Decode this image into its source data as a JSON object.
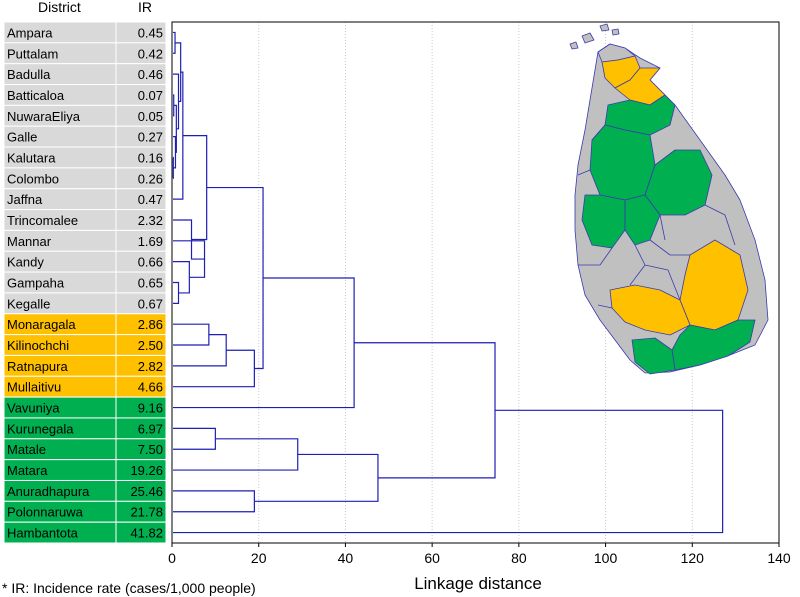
{
  "chart_data": {
    "type": "dendrogram",
    "table_headers": {
      "district": "District",
      "ir": "IR"
    },
    "rows": [
      {
        "district": "Ampara",
        "ir": "0.45",
        "cluster": "low"
      },
      {
        "district": "Puttalam",
        "ir": "0.42",
        "cluster": "low"
      },
      {
        "district": "Badulla",
        "ir": "0.46",
        "cluster": "low"
      },
      {
        "district": "Batticaloa",
        "ir": "0.07",
        "cluster": "low"
      },
      {
        "district": "NuwaraEliya",
        "ir": "0.05",
        "cluster": "low"
      },
      {
        "district": "Galle",
        "ir": "0.27",
        "cluster": "low"
      },
      {
        "district": "Kalutara",
        "ir": "0.16",
        "cluster": "low"
      },
      {
        "district": "Colombo",
        "ir": "0.26",
        "cluster": "low"
      },
      {
        "district": "Jaffna",
        "ir": "0.47",
        "cluster": "low"
      },
      {
        "district": "Trincomalee",
        "ir": "2.32",
        "cluster": "low"
      },
      {
        "district": "Mannar",
        "ir": "1.69",
        "cluster": "low"
      },
      {
        "district": "Kandy",
        "ir": "0.66",
        "cluster": "low"
      },
      {
        "district": "Gampaha",
        "ir": "0.65",
        "cluster": "low"
      },
      {
        "district": "Kegalle",
        "ir": "0.67",
        "cluster": "low"
      },
      {
        "district": "Monaragala",
        "ir": "2.86",
        "cluster": "medium"
      },
      {
        "district": "Kilinochchi",
        "ir": "2.50",
        "cluster": "medium"
      },
      {
        "district": "Ratnapura",
        "ir": "2.82",
        "cluster": "medium"
      },
      {
        "district": "Mullaitivu",
        "ir": "4.66",
        "cluster": "medium"
      },
      {
        "district": "Vavuniya",
        "ir": "9.16",
        "cluster": "high"
      },
      {
        "district": "Kurunegala",
        "ir": "6.97",
        "cluster": "high"
      },
      {
        "district": "Matale",
        "ir": "7.50",
        "cluster": "high"
      },
      {
        "district": "Matara",
        "ir": "19.26",
        "cluster": "high"
      },
      {
        "district": "Anuradhapura",
        "ir": "25.46",
        "cluster": "high"
      },
      {
        "district": "Polonnaruwa",
        "ir": "21.78",
        "cluster": "high"
      },
      {
        "district": "Hambantota",
        "ir": "41.82",
        "cluster": "high"
      }
    ],
    "cluster_colors": {
      "low": "#d9d9d9",
      "medium": "#ffc000",
      "high": "#00b050"
    },
    "links": [
      {
        "id": "n1",
        "children": [
          "L0",
          "L1"
        ],
        "height": 0.7
      },
      {
        "id": "n2",
        "children": [
          "L3",
          "L4"
        ],
        "height": 0.4
      },
      {
        "id": "n3",
        "children": [
          "L6",
          "L7"
        ],
        "height": 0.3
      },
      {
        "id": "n4",
        "children": [
          "L5",
          "n3"
        ],
        "height": 0.8
      },
      {
        "id": "n5",
        "children": [
          "n2",
          "n4"
        ],
        "height": 1.0
      },
      {
        "id": "n6",
        "children": [
          "L2",
          "n5"
        ],
        "height": 1.5
      },
      {
        "id": "n7",
        "children": [
          "n1",
          "n6"
        ],
        "height": 2.0
      },
      {
        "id": "n8",
        "children": [
          "n7",
          "L8"
        ],
        "height": 2.5
      },
      {
        "id": "n9",
        "children": [
          "L12",
          "L13"
        ],
        "height": 1.5
      },
      {
        "id": "n10",
        "children": [
          "L11",
          "n9"
        ],
        "height": 4.0
      },
      {
        "id": "n11",
        "children": [
          "L10",
          "n10"
        ],
        "height": 7.5
      },
      {
        "id": "n12",
        "children": [
          "L9",
          "n11"
        ],
        "height": 4.5
      },
      {
        "id": "n13",
        "children": [
          "n8",
          "n12"
        ],
        "height": 8.0
      },
      {
        "id": "n14",
        "children": [
          "L14",
          "L15"
        ],
        "height": 8.5
      },
      {
        "id": "n15",
        "children": [
          "n14",
          "L16"
        ],
        "height": 12.5
      },
      {
        "id": "n16",
        "children": [
          "n15",
          "L17"
        ],
        "height": 19.0
      },
      {
        "id": "n17",
        "children": [
          "n13",
          "n16"
        ],
        "height": 21.0
      },
      {
        "id": "n18",
        "children": [
          "n17",
          "L18"
        ],
        "height": 42.0
      },
      {
        "id": "n19",
        "children": [
          "L19",
          "L20"
        ],
        "height": 10.0
      },
      {
        "id": "n20",
        "children": [
          "n19",
          "L21"
        ],
        "height": 29.0
      },
      {
        "id": "n21",
        "children": [
          "L22",
          "L23"
        ],
        "height": 19.0
      },
      {
        "id": "n22",
        "children": [
          "n20",
          "n21"
        ],
        "height": 47.5
      },
      {
        "id": "n23",
        "children": [
          "n18",
          "n22"
        ],
        "height": 74.5
      },
      {
        "id": "n24",
        "children": [
          "n23",
          "L24"
        ],
        "height": 127.0
      }
    ],
    "xlabel": "Linkage distance",
    "xlim": [
      0,
      140
    ],
    "xticks": [
      "0",
      "20",
      "40",
      "60",
      "80",
      "100",
      "120",
      "140"
    ],
    "grid": "vertical",
    "line_color": "#1f1fb4",
    "map_colors": {
      "land": "#c0c0c0",
      "outline": "#3a3ab0"
    }
  },
  "footnote": "* IR: Incidence rate (cases/1,000 people)"
}
